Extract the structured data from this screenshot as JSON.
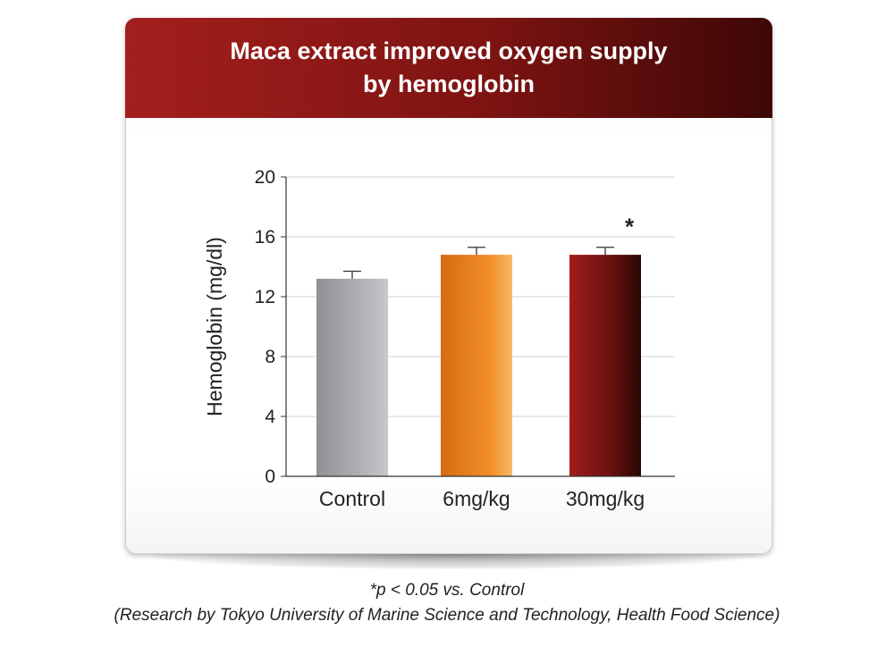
{
  "title_line1": "Maca extract improved oxygen supply",
  "title_line2": "by hemoglobin",
  "footnote_sig": "*p < 0.05 vs. Control",
  "footnote_source": "(Research by Tokyo University of Marine Science and Technology, Health Food Science)",
  "colors": {
    "header": "#8b1a18",
    "control_bar": "#a7a9ac",
    "mid_bar": "#f0962e",
    "high_bar": "#6e1110"
  },
  "chart_data": {
    "type": "bar",
    "title": "Maca extract improved oxygen supply by hemoglobin",
    "xlabel": "",
    "ylabel": "Hemoglobin (mg/dl)",
    "ylim": [
      0,
      20
    ],
    "yticks": [
      0,
      4,
      8,
      12,
      16,
      20
    ],
    "categories": [
      "Control",
      "6mg/kg",
      "30mg/kg"
    ],
    "values": [
      13.2,
      14.8,
      14.8
    ],
    "errors": [
      0.5,
      0.5,
      0.5
    ],
    "annotations": [
      "",
      "",
      "*"
    ],
    "grid": true,
    "legend": "none"
  }
}
